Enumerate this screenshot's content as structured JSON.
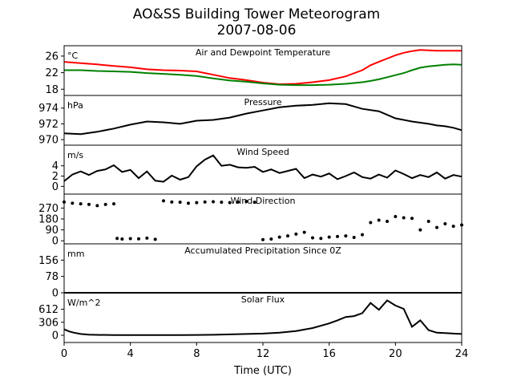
{
  "title": "AO&SS Building Tower Meteorogram",
  "subtitle": "2007-08-06",
  "xlabel": "Time (UTC)",
  "chart_data": [
    {
      "type": "line",
      "title": "Air and Dewpoint Temperature",
      "unit": "°C",
      "ylim": [
        16.5,
        28.5
      ],
      "yticks": [
        18,
        22,
        26
      ],
      "series": [
        {
          "color": "#ff0000",
          "x": [
            0,
            1,
            2,
            3,
            4,
            5,
            6,
            7,
            8,
            9,
            10,
            11,
            12,
            13,
            14,
            15,
            16,
            17,
            18,
            18.5,
            19,
            19.5,
            20,
            20.5,
            21,
            21.5,
            22,
            22.5,
            23,
            23.5,
            24
          ],
          "values": [
            24.6,
            24.3,
            24,
            23.6,
            23.3,
            22.8,
            22.6,
            22.5,
            22.3,
            21.5,
            20.7,
            20.2,
            19.6,
            19.2,
            19.3,
            19.7,
            20.2,
            21.1,
            22.6,
            23.8,
            24.6,
            25.4,
            26.2,
            26.8,
            27.2,
            27.5,
            27.4,
            27.3,
            27.3,
            27.3,
            27.3
          ]
        },
        {
          "color": "#008000",
          "x": [
            0,
            1,
            2,
            3,
            4,
            5,
            6,
            7,
            8,
            9,
            10,
            11,
            12,
            13,
            14,
            15,
            16,
            17,
            18,
            18.5,
            19,
            19.5,
            20,
            20.5,
            21,
            21.5,
            22,
            22.5,
            23,
            23.5,
            24
          ],
          "values": [
            22.6,
            22.6,
            22.4,
            22.3,
            22.2,
            21.9,
            21.7,
            21.5,
            21.2,
            20.6,
            20.1,
            19.8,
            19.4,
            19.1,
            19.0,
            19.0,
            19.1,
            19.3,
            19.7,
            20.0,
            20.4,
            20.9,
            21.4,
            21.9,
            22.6,
            23.2,
            23.5,
            23.7,
            23.9,
            24.0,
            23.9
          ]
        }
      ]
    },
    {
      "type": "line",
      "title": "Pressure",
      "unit": "hPa",
      "ylim": [
        969.3,
        975.6
      ],
      "yticks": [
        970,
        972,
        974
      ],
      "series": [
        {
          "color": "#000000",
          "x": [
            0,
            1,
            2,
            3,
            4,
            5,
            6,
            7,
            8,
            9,
            10,
            11,
            12,
            13,
            14,
            15,
            16,
            17,
            18,
            19,
            20,
            21,
            22,
            22.5,
            23,
            23.5,
            24
          ],
          "values": [
            970.8,
            970.7,
            971.0,
            971.4,
            971.9,
            972.3,
            972.2,
            972.0,
            972.4,
            972.5,
            972.8,
            973.3,
            973.7,
            974.1,
            974.3,
            974.4,
            974.6,
            974.5,
            973.9,
            973.6,
            972.7,
            972.3,
            972.0,
            971.8,
            971.7,
            971.5,
            971.2
          ]
        }
      ]
    },
    {
      "type": "line",
      "title": "Wind Speed",
      "unit": "m/s",
      "ylim": [
        -1.5,
        8.0
      ],
      "yticks": [
        0,
        2,
        4
      ],
      "series": [
        {
          "color": "#000000",
          "x": [
            0,
            0.5,
            1,
            1.5,
            2,
            2.5,
            3,
            3.5,
            4,
            4.5,
            5,
            5.5,
            6,
            6.5,
            7,
            7.5,
            8,
            8.5,
            9,
            9.5,
            10,
            10.5,
            11,
            11.5,
            12,
            12.5,
            13,
            13.5,
            14,
            14.5,
            15,
            15.5,
            16,
            16.5,
            17,
            17.5,
            18,
            18.5,
            19,
            19.5,
            20,
            20.5,
            21,
            21.5,
            22,
            22.5,
            23,
            23.5,
            24
          ],
          "values": [
            1.0,
            2.3,
            2.9,
            2.2,
            3.0,
            3.3,
            4.1,
            2.8,
            3.2,
            1.6,
            2.9,
            1.1,
            0.9,
            2.1,
            1.3,
            1.8,
            3.9,
            5.2,
            6.0,
            4.0,
            4.2,
            3.7,
            3.6,
            3.8,
            2.8,
            3.3,
            2.6,
            3.0,
            3.4,
            1.6,
            2.3,
            1.9,
            2.5,
            1.4,
            2.0,
            2.7,
            1.8,
            1.5,
            2.3,
            1.7,
            3.1,
            2.4,
            1.6,
            2.2,
            1.8,
            2.7,
            1.5,
            2.2,
            1.9
          ]
        }
      ]
    },
    {
      "type": "scatter",
      "title": "Wind Direction",
      "ylim": [
        -25,
        385
      ],
      "yticks": [
        0,
        90,
        180,
        270
      ],
      "series": [
        {
          "color": "#000000",
          "x": [
            0,
            0.5,
            1,
            1.5,
            2,
            2.5,
            3,
            3.2,
            3.5,
            4,
            4.5,
            5,
            5.5,
            6,
            6.5,
            7,
            7.5,
            8,
            8.5,
            9,
            9.5,
            10,
            10.5,
            11,
            11.5,
            12,
            12.5,
            13,
            13.5,
            14,
            14.5,
            15,
            15.5,
            16,
            16.5,
            17,
            17.5,
            18,
            18.5,
            19,
            19.5,
            20,
            20.5,
            21,
            21.5,
            22,
            22.5,
            23,
            23.5,
            24
          ],
          "values": [
            320,
            310,
            305,
            300,
            290,
            300,
            305,
            20,
            15,
            18,
            16,
            22,
            12,
            330,
            320,
            318,
            310,
            315,
            320,
            322,
            318,
            315,
            320,
            325,
            318,
            10,
            15,
            30,
            40,
            55,
            70,
            25,
            20,
            30,
            35,
            40,
            28,
            50,
            150,
            170,
            160,
            200,
            190,
            185,
            90,
            160,
            110,
            140,
            120,
            130
          ]
        }
      ]
    },
    {
      "type": "line",
      "title": "Accumulated Precipitation Since 0Z",
      "unit": "mm",
      "ylim": [
        0,
        234
      ],
      "yticks": [
        0,
        78,
        156
      ],
      "series": [
        {
          "color": "#000000",
          "x": [
            0,
            24
          ],
          "values": [
            0,
            0
          ]
        }
      ]
    },
    {
      "type": "line",
      "title": "Solar Flux",
      "unit": "W/m^2",
      "ylim": [
        -170,
        1000
      ],
      "yticks": [
        0,
        306,
        612
      ],
      "series": [
        {
          "color": "#000000",
          "x": [
            0,
            0.3,
            0.6,
            1,
            1.5,
            2,
            3,
            4,
            5,
            6,
            7,
            8,
            9,
            10,
            11,
            12,
            13,
            14,
            15,
            16,
            16.5,
            17,
            17.5,
            18,
            18.5,
            19,
            19.5,
            20,
            20.5,
            21,
            21.5,
            22,
            22.5,
            23,
            23.5,
            24
          ],
          "values": [
            140,
            90,
            60,
            30,
            15,
            10,
            5,
            5,
            5,
            5,
            5,
            8,
            12,
            20,
            30,
            40,
            60,
            100,
            170,
            280,
            350,
            430,
            450,
            520,
            760,
            600,
            820,
            700,
            620,
            200,
            350,
            120,
            60,
            50,
            40,
            30
          ]
        }
      ]
    }
  ],
  "xaxis": {
    "xlim": [
      0,
      24
    ],
    "ticks": [
      "0",
      "4",
      "8",
      "12",
      "16",
      "20",
      "24"
    ]
  }
}
